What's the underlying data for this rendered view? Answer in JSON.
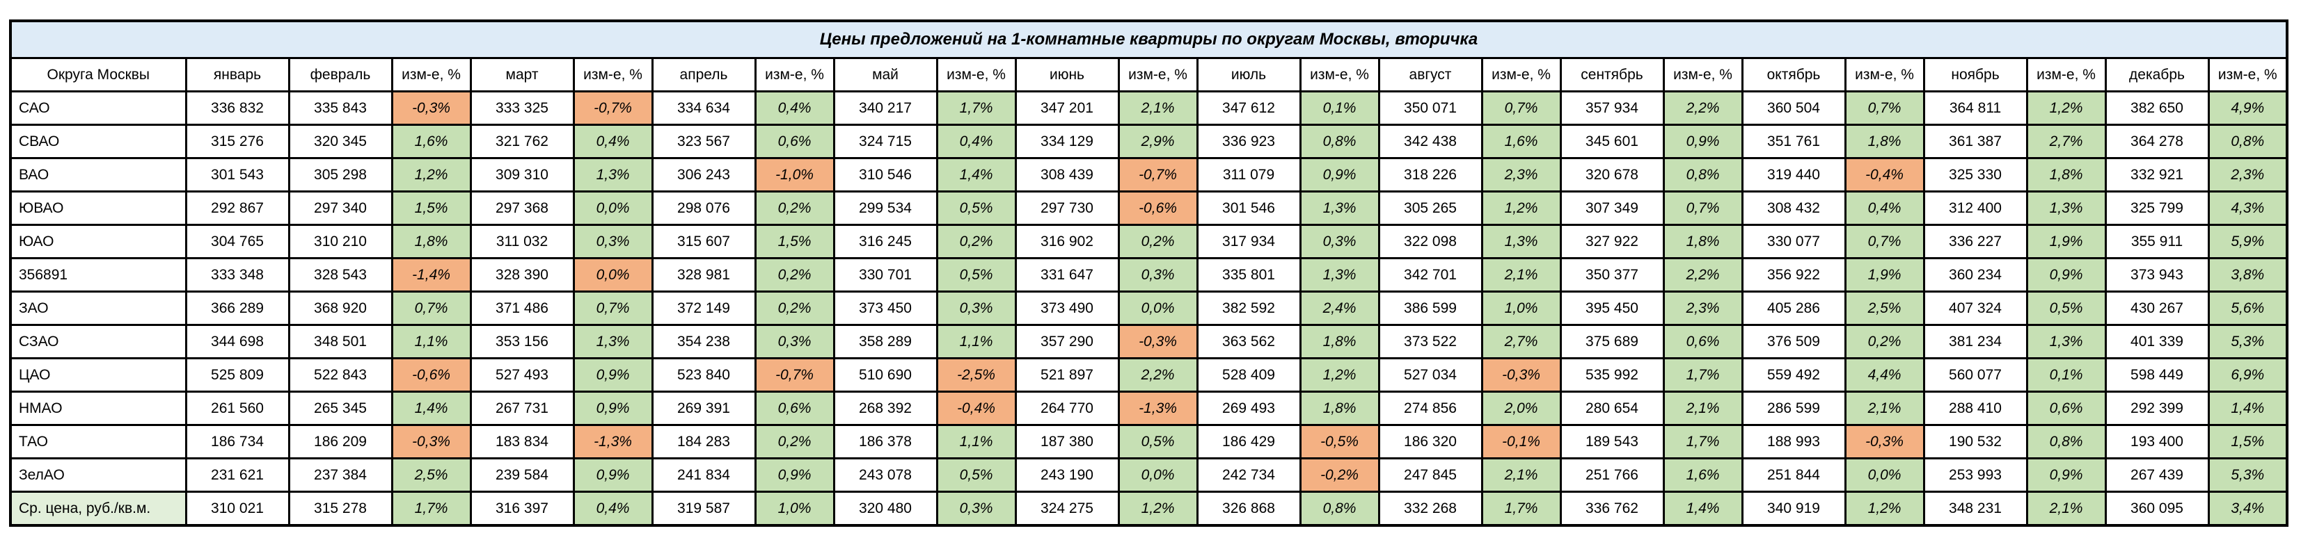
{
  "title": "Цены предложений на 1-комнатные квартиры по округам Москвы, вторичка",
  "header": {
    "district_column": "Округа Москвы",
    "months": [
      "январь",
      "февраль",
      "март",
      "апрель",
      "май",
      "июнь",
      "июль",
      "август",
      "сентябрь",
      "октябрь",
      "ноябрь",
      "декабрь"
    ],
    "change_column": "изм-е, %"
  },
  "colors": {
    "title_bg": "#DEEBF7",
    "positive_bg": "#C6E0B4",
    "negative_bg": "#F4B183",
    "summary_label_bg": "#E2EFDA",
    "border": "#000000"
  },
  "rows": [
    {
      "label": "САО",
      "summary": false,
      "values": [
        "336 832",
        "335 843",
        "333 325",
        "334 634",
        "340 217",
        "347 201",
        "347 612",
        "350 071",
        "357 934",
        "360 504",
        "364 811",
        "382 650"
      ],
      "changes": [
        {
          "t": "-0,3%",
          "s": "neg"
        },
        {
          "t": "-0,7%",
          "s": "neg"
        },
        {
          "t": "0,4%",
          "s": "pos"
        },
        {
          "t": "1,7%",
          "s": "pos"
        },
        {
          "t": "2,1%",
          "s": "pos"
        },
        {
          "t": "0,1%",
          "s": "pos"
        },
        {
          "t": "0,7%",
          "s": "pos"
        },
        {
          "t": "2,2%",
          "s": "pos"
        },
        {
          "t": "0,7%",
          "s": "pos"
        },
        {
          "t": "1,2%",
          "s": "pos"
        },
        {
          "t": "4,9%",
          "s": "pos"
        }
      ]
    },
    {
      "label": "СВАО",
      "summary": false,
      "values": [
        "315 276",
        "320 345",
        "321 762",
        "323 567",
        "324 715",
        "334 129",
        "336 923",
        "342 438",
        "345 601",
        "351 761",
        "361 387",
        "364 278"
      ],
      "changes": [
        {
          "t": "1,6%",
          "s": "pos"
        },
        {
          "t": "0,4%",
          "s": "pos"
        },
        {
          "t": "0,6%",
          "s": "pos"
        },
        {
          "t": "0,4%",
          "s": "pos"
        },
        {
          "t": "2,9%",
          "s": "pos"
        },
        {
          "t": "0,8%",
          "s": "pos"
        },
        {
          "t": "1,6%",
          "s": "pos"
        },
        {
          "t": "0,9%",
          "s": "pos"
        },
        {
          "t": "1,8%",
          "s": "pos"
        },
        {
          "t": "2,7%",
          "s": "pos"
        },
        {
          "t": "0,8%",
          "s": "pos"
        }
      ]
    },
    {
      "label": "ВАО",
      "summary": false,
      "values": [
        "301 543",
        "305 298",
        "309 310",
        "306 243",
        "310 546",
        "308 439",
        "311 079",
        "318 226",
        "320 678",
        "319 440",
        "325 330",
        "332 921"
      ],
      "changes": [
        {
          "t": "1,2%",
          "s": "pos"
        },
        {
          "t": "1,3%",
          "s": "pos"
        },
        {
          "t": "-1,0%",
          "s": "neg"
        },
        {
          "t": "1,4%",
          "s": "pos"
        },
        {
          "t": "-0,7%",
          "s": "neg"
        },
        {
          "t": "0,9%",
          "s": "pos"
        },
        {
          "t": "2,3%",
          "s": "pos"
        },
        {
          "t": "0,8%",
          "s": "pos"
        },
        {
          "t": "-0,4%",
          "s": "neg"
        },
        {
          "t": "1,8%",
          "s": "pos"
        },
        {
          "t": "2,3%",
          "s": "pos"
        }
      ]
    },
    {
      "label": "ЮВАО",
      "summary": false,
      "values": [
        "292 867",
        "297 340",
        "297 368",
        "298 076",
        "299 534",
        "297 730",
        "301 546",
        "305 265",
        "307 349",
        "308 432",
        "312 400",
        "325 799"
      ],
      "changes": [
        {
          "t": "1,5%",
          "s": "pos"
        },
        {
          "t": "0,0%",
          "s": "pos"
        },
        {
          "t": "0,2%",
          "s": "pos"
        },
        {
          "t": "0,5%",
          "s": "pos"
        },
        {
          "t": "-0,6%",
          "s": "neg"
        },
        {
          "t": "1,3%",
          "s": "pos"
        },
        {
          "t": "1,2%",
          "s": "pos"
        },
        {
          "t": "0,7%",
          "s": "pos"
        },
        {
          "t": "0,4%",
          "s": "pos"
        },
        {
          "t": "1,3%",
          "s": "pos"
        },
        {
          "t": "4,3%",
          "s": "pos"
        }
      ]
    },
    {
      "label": "ЮАО",
      "summary": false,
      "values": [
        "304 765",
        "310 210",
        "311 032",
        "315 607",
        "316 245",
        "316 902",
        "317 934",
        "322 098",
        "327 922",
        "330 077",
        "336 227",
        "355 911"
      ],
      "changes": [
        {
          "t": "1,8%",
          "s": "pos"
        },
        {
          "t": "0,3%",
          "s": "pos"
        },
        {
          "t": "1,5%",
          "s": "pos"
        },
        {
          "t": "0,2%",
          "s": "pos"
        },
        {
          "t": "0,2%",
          "s": "pos"
        },
        {
          "t": "0,3%",
          "s": "pos"
        },
        {
          "t": "1,3%",
          "s": "pos"
        },
        {
          "t": "1,8%",
          "s": "pos"
        },
        {
          "t": "0,7%",
          "s": "pos"
        },
        {
          "t": "1,9%",
          "s": "pos"
        },
        {
          "t": "5,9%",
          "s": "pos"
        }
      ]
    },
    {
      "label": "356891",
      "summary": false,
      "values": [
        "333 348",
        "328 543",
        "328 390",
        "328 981",
        "330 701",
        "331 647",
        "335 801",
        "342 701",
        "350 377",
        "356 922",
        "360 234",
        "373 943"
      ],
      "changes": [
        {
          "t": "-1,4%",
          "s": "neg"
        },
        {
          "t": "0,0%",
          "s": "neg"
        },
        {
          "t": "0,2%",
          "s": "pos"
        },
        {
          "t": "0,5%",
          "s": "pos"
        },
        {
          "t": "0,3%",
          "s": "pos"
        },
        {
          "t": "1,3%",
          "s": "pos"
        },
        {
          "t": "2,1%",
          "s": "pos"
        },
        {
          "t": "2,2%",
          "s": "pos"
        },
        {
          "t": "1,9%",
          "s": "pos"
        },
        {
          "t": "0,9%",
          "s": "pos"
        },
        {
          "t": "3,8%",
          "s": "pos"
        }
      ]
    },
    {
      "label": "ЗАО",
      "summary": false,
      "values": [
        "366 289",
        "368 920",
        "371 486",
        "372 149",
        "373 450",
        "373 490",
        "382 592",
        "386 599",
        "395 450",
        "405 286",
        "407 324",
        "430 267"
      ],
      "changes": [
        {
          "t": "0,7%",
          "s": "pos"
        },
        {
          "t": "0,7%",
          "s": "pos"
        },
        {
          "t": "0,2%",
          "s": "pos"
        },
        {
          "t": "0,3%",
          "s": "pos"
        },
        {
          "t": "0,0%",
          "s": "pos"
        },
        {
          "t": "2,4%",
          "s": "pos"
        },
        {
          "t": "1,0%",
          "s": "pos"
        },
        {
          "t": "2,3%",
          "s": "pos"
        },
        {
          "t": "2,5%",
          "s": "pos"
        },
        {
          "t": "0,5%",
          "s": "pos"
        },
        {
          "t": "5,6%",
          "s": "pos"
        }
      ]
    },
    {
      "label": "СЗАО",
      "summary": false,
      "values": [
        "344 698",
        "348 501",
        "353 156",
        "354 238",
        "358 289",
        "357 290",
        "363 562",
        "373 522",
        "375 689",
        "376 509",
        "381 234",
        "401 339"
      ],
      "changes": [
        {
          "t": "1,1%",
          "s": "pos"
        },
        {
          "t": "1,3%",
          "s": "pos"
        },
        {
          "t": "0,3%",
          "s": "pos"
        },
        {
          "t": "1,1%",
          "s": "pos"
        },
        {
          "t": "-0,3%",
          "s": "neg"
        },
        {
          "t": "1,8%",
          "s": "pos"
        },
        {
          "t": "2,7%",
          "s": "pos"
        },
        {
          "t": "0,6%",
          "s": "pos"
        },
        {
          "t": "0,2%",
          "s": "pos"
        },
        {
          "t": "1,3%",
          "s": "pos"
        },
        {
          "t": "5,3%",
          "s": "pos"
        }
      ]
    },
    {
      "label": "ЦАО",
      "summary": false,
      "values": [
        "525 809",
        "522 843",
        "527 493",
        "523 840",
        "510 690",
        "521 897",
        "528 409",
        "527 034",
        "535 992",
        "559 492",
        "560 077",
        "598 449"
      ],
      "changes": [
        {
          "t": "-0,6%",
          "s": "neg"
        },
        {
          "t": "0,9%",
          "s": "pos"
        },
        {
          "t": "-0,7%",
          "s": "neg"
        },
        {
          "t": "-2,5%",
          "s": "neg"
        },
        {
          "t": "2,2%",
          "s": "pos"
        },
        {
          "t": "1,2%",
          "s": "pos"
        },
        {
          "t": "-0,3%",
          "s": "neg"
        },
        {
          "t": "1,7%",
          "s": "pos"
        },
        {
          "t": "4,4%",
          "s": "pos"
        },
        {
          "t": "0,1%",
          "s": "pos"
        },
        {
          "t": "6,9%",
          "s": "pos"
        }
      ]
    },
    {
      "label": "НМАО",
      "summary": false,
      "values": [
        "261 560",
        "265 345",
        "267 731",
        "269 391",
        "268 392",
        "264 770",
        "269 493",
        "274 856",
        "280 654",
        "286 599",
        "288 410",
        "292 399"
      ],
      "changes": [
        {
          "t": "1,4%",
          "s": "pos"
        },
        {
          "t": "0,9%",
          "s": "pos"
        },
        {
          "t": "0,6%",
          "s": "pos"
        },
        {
          "t": "-0,4%",
          "s": "neg"
        },
        {
          "t": "-1,3%",
          "s": "neg"
        },
        {
          "t": "1,8%",
          "s": "pos"
        },
        {
          "t": "2,0%",
          "s": "pos"
        },
        {
          "t": "2,1%",
          "s": "pos"
        },
        {
          "t": "2,1%",
          "s": "pos"
        },
        {
          "t": "0,6%",
          "s": "pos"
        },
        {
          "t": "1,4%",
          "s": "pos"
        }
      ]
    },
    {
      "label": "ТАО",
      "summary": false,
      "values": [
        "186 734",
        "186 209",
        "183 834",
        "184 283",
        "186 378",
        "187 380",
        "186 429",
        "186 320",
        "189 543",
        "188 993",
        "190 532",
        "193 400"
      ],
      "changes": [
        {
          "t": "-0,3%",
          "s": "neg"
        },
        {
          "t": "-1,3%",
          "s": "neg"
        },
        {
          "t": "0,2%",
          "s": "pos"
        },
        {
          "t": "1,1%",
          "s": "pos"
        },
        {
          "t": "0,5%",
          "s": "pos"
        },
        {
          "t": "-0,5%",
          "s": "neg"
        },
        {
          "t": "-0,1%",
          "s": "neg"
        },
        {
          "t": "1,7%",
          "s": "pos"
        },
        {
          "t": "-0,3%",
          "s": "neg"
        },
        {
          "t": "0,8%",
          "s": "pos"
        },
        {
          "t": "1,5%",
          "s": "pos"
        }
      ]
    },
    {
      "label": "ЗелАО",
      "summary": false,
      "values": [
        "231 621",
        "237 384",
        "239 584",
        "241 834",
        "243 078",
        "243 190",
        "242 734",
        "247 845",
        "251 766",
        "251 844",
        "253 993",
        "267 439"
      ],
      "changes": [
        {
          "t": "2,5%",
          "s": "pos"
        },
        {
          "t": "0,9%",
          "s": "pos"
        },
        {
          "t": "0,9%",
          "s": "pos"
        },
        {
          "t": "0,5%",
          "s": "pos"
        },
        {
          "t": "0,0%",
          "s": "pos"
        },
        {
          "t": "-0,2%",
          "s": "neg"
        },
        {
          "t": "2,1%",
          "s": "pos"
        },
        {
          "t": "1,6%",
          "s": "pos"
        },
        {
          "t": "0,0%",
          "s": "pos"
        },
        {
          "t": "0,9%",
          "s": "pos"
        },
        {
          "t": "5,3%",
          "s": "pos"
        }
      ]
    },
    {
      "label": "Ср. цена, руб./кв.м.",
      "summary": true,
      "values": [
        "310 021",
        "315 278",
        "316 397",
        "319 587",
        "320 480",
        "324 275",
        "326 868",
        "332 268",
        "336 762",
        "340 919",
        "348 231",
        "360 095"
      ],
      "changes": [
        {
          "t": "1,7%",
          "s": "pos"
        },
        {
          "t": "0,4%",
          "s": "pos"
        },
        {
          "t": "1,0%",
          "s": "pos"
        },
        {
          "t": "0,3%",
          "s": "pos"
        },
        {
          "t": "1,2%",
          "s": "pos"
        },
        {
          "t": "0,8%",
          "s": "pos"
        },
        {
          "t": "1,7%",
          "s": "pos"
        },
        {
          "t": "1,4%",
          "s": "pos"
        },
        {
          "t": "1,2%",
          "s": "pos"
        },
        {
          "t": "2,1%",
          "s": "pos"
        },
        {
          "t": "3,4%",
          "s": "pos"
        }
      ]
    }
  ],
  "layout": {
    "label_col_width": 252,
    "value_col_width": 148,
    "change_col_width": 113
  }
}
